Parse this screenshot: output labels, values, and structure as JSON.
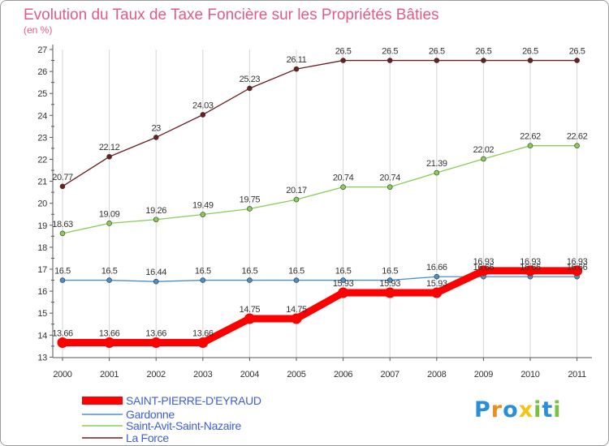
{
  "chart_data": {
    "type": "line",
    "title": "Evolution du Taux de Taxe Foncière sur les Propriétés Bâties",
    "subtitle": "(en %)",
    "x": [
      "2000",
      "2001",
      "2002",
      "2003",
      "2004",
      "2005",
      "2006",
      "2007",
      "2008",
      "2009",
      "2010",
      "2011"
    ],
    "ylim": [
      13,
      27
    ],
    "yticks": [
      13,
      14,
      15,
      16,
      17,
      18,
      19,
      20,
      21,
      22,
      23,
      24,
      25,
      26,
      27
    ],
    "grid": {
      "vertical": true,
      "horizontal": false
    },
    "legend_position": "bottom-left",
    "series": [
      {
        "name": "SAINT-PIERRE-D'EYRAUD",
        "color": "#ff0000",
        "values": [
          13.66,
          13.66,
          13.66,
          13.66,
          14.75,
          14.75,
          15.93,
          15.93,
          15.93,
          16.93,
          16.93,
          16.93
        ],
        "labels": [
          "13.66",
          "13.66",
          "13.66",
          "13.66",
          "14.75",
          "14.75",
          "15.93",
          "15.93",
          "15.93",
          "16.93",
          "16.93",
          "16.93"
        ]
      },
      {
        "name": "Gardonne",
        "color": "#4a90c8",
        "values": [
          16.5,
          16.5,
          16.44,
          16.5,
          16.5,
          16.5,
          16.5,
          16.5,
          16.66,
          16.66,
          16.66,
          16.66
        ],
        "labels": [
          "16.5",
          "16.5",
          "16.44",
          "16.5",
          "16.5",
          "16.5",
          "16.5",
          "16.5",
          "16.66",
          "16.66",
          "16.66",
          "16.66"
        ]
      },
      {
        "name": "Saint-Avit-Saint-Nazaire",
        "color": "#88cc55",
        "values": [
          18.63,
          19.09,
          19.26,
          19.49,
          19.75,
          20.17,
          20.74,
          20.74,
          21.39,
          22.02,
          22.62,
          22.62
        ],
        "labels": [
          "18.63",
          "19.09",
          "19.26",
          "19.49",
          "19.75",
          "20.17",
          "20.74",
          "20.74",
          "21.39",
          "22.02",
          "22.62",
          "22.62"
        ]
      },
      {
        "name": "La Force",
        "color": "#6b1f24",
        "values": [
          20.77,
          22.12,
          23,
          24.03,
          25.23,
          26.11,
          26.5,
          26.5,
          26.5,
          26.5,
          26.5,
          26.5
        ],
        "labels": [
          "20.77",
          "22.12",
          "23",
          "24.03",
          "25.23",
          "26.11",
          "26.5",
          "26.5",
          "26.5",
          "26.5",
          "26.5",
          "26.5"
        ]
      }
    ]
  },
  "logo": {
    "letters": [
      "P",
      "r",
      "o",
      "x",
      "i",
      "t",
      "i"
    ],
    "colors": [
      "#2a8fd6",
      "#f08a1c",
      "#2a8fd6",
      "#f0c419",
      "#7ac143",
      "#2a8fd6",
      "#7ac143"
    ]
  }
}
